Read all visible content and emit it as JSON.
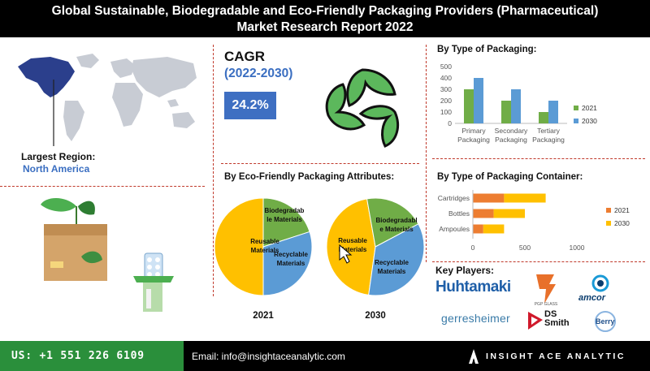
{
  "header": {
    "line1": "Global Sustainable, Biodegradable and Eco-Friendly Packaging Providers (Pharmaceutical)",
    "line2": "Market Research Report 2022"
  },
  "region": {
    "label": "Largest Region:",
    "value": "North America"
  },
  "cagr": {
    "label": "CAGR",
    "period": "(2022-2030)",
    "value": "24.2%"
  },
  "colors": {
    "green": "#70ad47",
    "blue": "#5b9bd5",
    "orange": "#ed7d31",
    "yellow": "#ffc000",
    "accent_blue": "#3e6fc2",
    "footer_green": "#2a8f3b"
  },
  "chart_data": [
    {
      "type": "bar",
      "title": "By Type of Packaging:",
      "categories": [
        [
          "Primary",
          "Packaging"
        ],
        [
          "Secondary",
          "Packaging"
        ],
        [
          "Tertiary",
          "Packaging"
        ]
      ],
      "series": [
        {
          "name": "2021",
          "values": [
            300,
            200,
            100
          ],
          "color": "#70ad47"
        },
        {
          "name": "2030",
          "values": [
            400,
            300,
            200
          ],
          "color": "#5b9bd5"
        }
      ],
      "ylim": [
        0,
        500
      ],
      "yticks": [
        0,
        100,
        200,
        300,
        400,
        500
      ],
      "legend": "right"
    },
    {
      "type": "bar",
      "orientation": "horizontal",
      "stacked": true,
      "title": "By Type of Packaging Container:",
      "categories": [
        "Cartridges",
        "Bottles",
        "Ampoules"
      ],
      "series": [
        {
          "name": "2021",
          "values": [
            300,
            200,
            100
          ],
          "color": "#ed7d31"
        },
        {
          "name": "2030",
          "values": [
            400,
            300,
            200
          ],
          "color": "#ffc000"
        }
      ],
      "xlim": [
        0,
        1000
      ],
      "xticks": [
        0,
        500,
        1000
      ],
      "legend": "right"
    },
    {
      "type": "pie",
      "title": "By Eco-Friendly Packaging Attributes:",
      "year": "2021",
      "slices": [
        {
          "label": "Reusable Materials",
          "value": 50,
          "color": "#ffc000"
        },
        {
          "label": "Biodegradable Materials",
          "value": 20,
          "color": "#70ad47"
        },
        {
          "label": "Recyclable Materials",
          "value": 30,
          "color": "#5b9bd5"
        }
      ]
    },
    {
      "type": "pie",
      "year": "2030",
      "slices": [
        {
          "label": "Reusable Materials",
          "value": 45,
          "color": "#ffc000"
        },
        {
          "label": "Biodegradable Materials",
          "value": 20,
          "color": "#70ad47"
        },
        {
          "label": "Recyclable Materials",
          "value": 35,
          "color": "#5b9bd5"
        }
      ]
    }
  ],
  "pie_labels": {
    "p2021": {
      "reusable": [
        "Reusable",
        "Materials"
      ],
      "biodegradable": [
        "Biodegradab",
        "le Materials"
      ],
      "recyclable": [
        "Recyclable",
        "Materials"
      ]
    },
    "p2030": {
      "reusable": [
        "Reusable",
        "Materials"
      ],
      "biodegradable": [
        "Biodegradabl",
        "e Materials"
      ],
      "recyclable": [
        "Recyclable",
        "Materials"
      ]
    }
  },
  "key_players": {
    "title": "Key Players:",
    "huhtamaki": "Huhtamaki",
    "pgp": "PGP GLASS",
    "amcor": "amcor",
    "gerresheimer": "gerresheimer",
    "ds_smith": [
      "DS",
      "Smith"
    ],
    "berry": "Berry"
  },
  "footer": {
    "phone": "US: +1 551 226 6109",
    "email": "Email: info@insightaceanalytic.com",
    "brand": "INSIGHT ACE ANALYTIC"
  }
}
